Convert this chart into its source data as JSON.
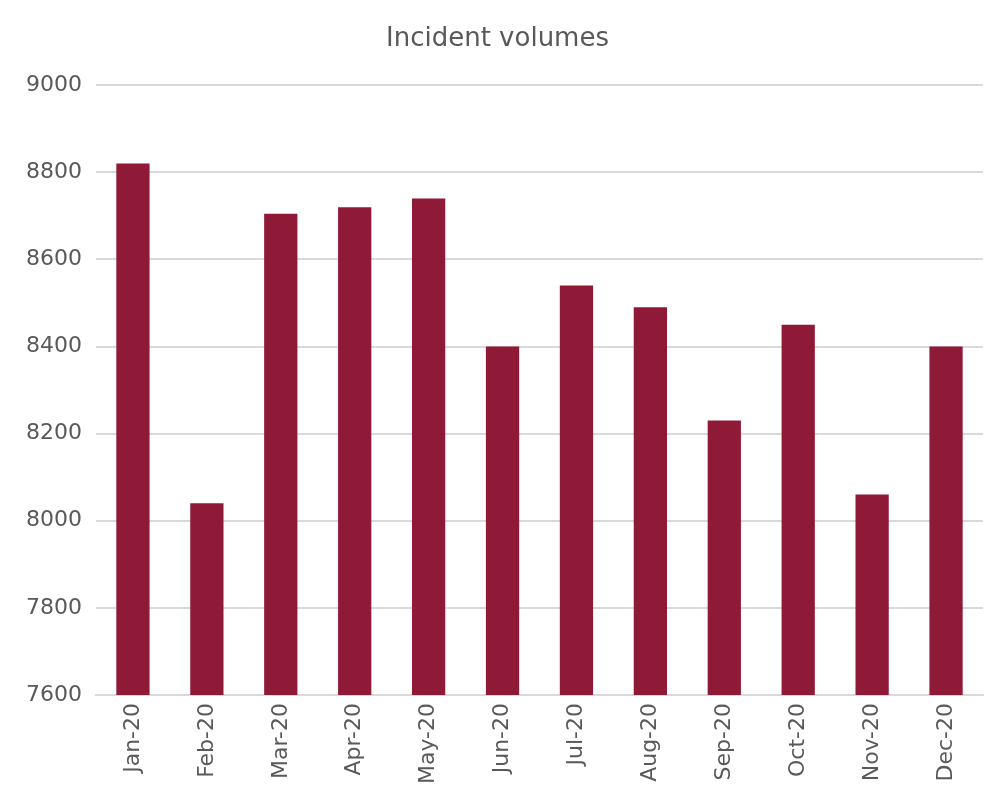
{
  "chart_data": {
    "type": "bar",
    "title": "Incident volumes",
    "categories": [
      "Jan-20",
      "Feb-20",
      "Mar-20",
      "Apr-20",
      "May-20",
      "Jun-20",
      "Jul-20",
      "Aug-20",
      "Sep-20",
      "Oct-20",
      "Nov-20",
      "Dec-20"
    ],
    "values": [
      8820,
      8040,
      8705,
      8720,
      8740,
      8400,
      8540,
      8490,
      8230,
      8450,
      8060,
      8400
    ],
    "color": "#8f1a38",
    "ylim": [
      7600,
      9000
    ],
    "yticks": [
      7600,
      7800,
      8000,
      8200,
      8400,
      8600,
      8800,
      9000
    ],
    "grid": "y",
    "legend": false
  }
}
